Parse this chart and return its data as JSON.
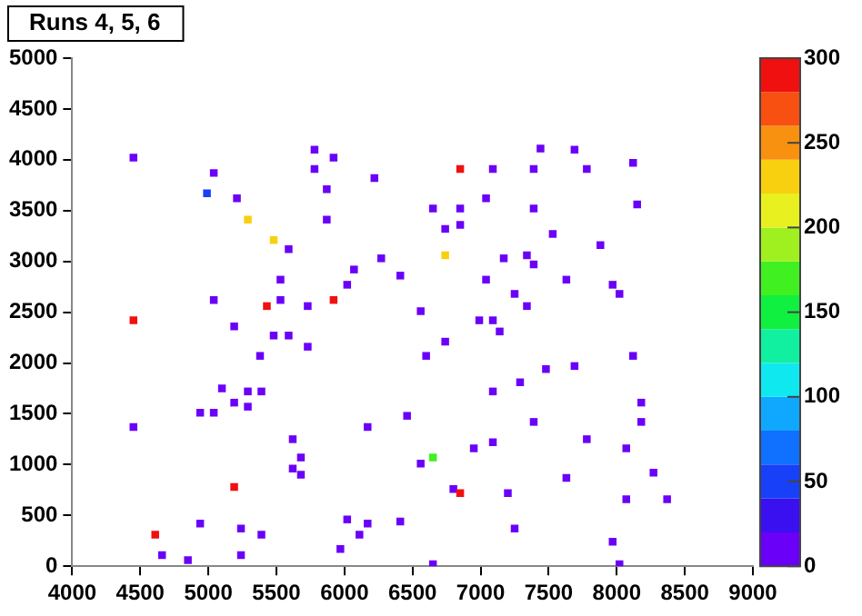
{
  "chart_data": {
    "type": "scatter",
    "title": "Runs 4, 5, 6",
    "x": [
      4450,
      5040,
      4990,
      5210,
      5290,
      5480,
      5590,
      5780,
      5920,
      5780,
      5870,
      5870,
      6220,
      6650,
      6740,
      6740,
      6070,
      6270,
      6410,
      6020,
      5530,
      5040,
      5530,
      5430,
      5920,
      5730,
      4450,
      5190,
      5480,
      5590,
      5730,
      5380,
      6560,
      6740,
      6600,
      7440,
      7690,
      6850,
      7090,
      7390,
      7780,
      8120,
      6850,
      7040,
      7390,
      8150,
      6850,
      7530,
      7880,
      7170,
      7340,
      7390,
      7040,
      7630,
      7970,
      8020,
      7250,
      7340,
      6990,
      7090,
      7140,
      8120,
      7480,
      7690,
      5100,
      5290,
      5390,
      5190,
      5290,
      4940,
      5040,
      4450,
      5620,
      5680,
      5620,
      5680,
      6170,
      6460,
      6560,
      6650,
      5190,
      6800,
      6020,
      6170,
      6410,
      4940,
      5240,
      5390,
      6110,
      4610,
      4660,
      4850,
      5240,
      5970,
      6650,
      7290,
      7090,
      8180,
      7390,
      8180,
      7780,
      7090,
      6950,
      8070,
      8270,
      7630,
      6850,
      7200,
      8070,
      8370,
      7250,
      7970,
      8020
    ],
    "values": [
      4020,
      3870,
      3670,
      3620,
      3410,
      3210,
      3120,
      4100,
      4020,
      3910,
      3710,
      3410,
      3820,
      3520,
      3320,
      3060,
      2920,
      3030,
      2860,
      2770,
      2820,
      2620,
      2620,
      2560,
      2620,
      2560,
      2420,
      2360,
      2270,
      2270,
      2160,
      2070,
      2510,
      2210,
      2070,
      4110,
      4100,
      3910,
      3910,
      3910,
      3910,
      3970,
      3520,
      3620,
      3520,
      3560,
      3360,
      3270,
      3160,
      3030,
      3060,
      2970,
      2820,
      2820,
      2770,
      2680,
      2680,
      2560,
      2420,
      2420,
      2310,
      2070,
      1940,
      1970,
      1750,
      1720,
      1720,
      1610,
      1570,
      1510,
      1510,
      1370,
      1250,
      1070,
      960,
      900,
      1370,
      1480,
      1010,
      1070,
      780,
      760,
      460,
      420,
      440,
      420,
      370,
      310,
      310,
      310,
      110,
      60,
      110,
      170,
      20,
      1810,
      1720,
      1610,
      1420,
      1420,
      1250,
      1220,
      1160,
      1160,
      920,
      870,
      720,
      720,
      660,
      660,
      370,
      240,
      20
    ],
    "cvalues": [
      5,
      5,
      40,
      5,
      230,
      230,
      5,
      5,
      5,
      5,
      5,
      5,
      5,
      5,
      5,
      230,
      5,
      5,
      5,
      5,
      5,
      5,
      5,
      290,
      290,
      5,
      290,
      5,
      5,
      5,
      5,
      5,
      5,
      5,
      5,
      5,
      5,
      290,
      5,
      5,
      5,
      5,
      5,
      5,
      5,
      5,
      5,
      5,
      5,
      5,
      5,
      5,
      5,
      5,
      5,
      5,
      5,
      5,
      5,
      5,
      5,
      5,
      5,
      5,
      5,
      5,
      5,
      5,
      5,
      5,
      5,
      5,
      5,
      5,
      5,
      5,
      5,
      5,
      5,
      170,
      290,
      5,
      5,
      5,
      5,
      5,
      5,
      5,
      5,
      290,
      5,
      5,
      5,
      5,
      5,
      5,
      5,
      5,
      5,
      5,
      5,
      5,
      5,
      5,
      5,
      5,
      290,
      5,
      5,
      5,
      5,
      5,
      5
    ],
    "xlim": [
      4000,
      9000
    ],
    "xticks": [
      4000,
      4500,
      5000,
      5500,
      6000,
      6500,
      7000,
      7500,
      8000,
      8500,
      9000
    ],
    "ylim": [
      0,
      5000
    ],
    "yticks": [
      0,
      500,
      1000,
      1500,
      2000,
      2500,
      3000,
      3500,
      4000,
      4500,
      5000
    ],
    "clim": [
      0,
      300
    ],
    "cticks": [
      0,
      50,
      100,
      150,
      200,
      250,
      300
    ],
    "marker": "square",
    "grid": false,
    "legend": false
  }
}
